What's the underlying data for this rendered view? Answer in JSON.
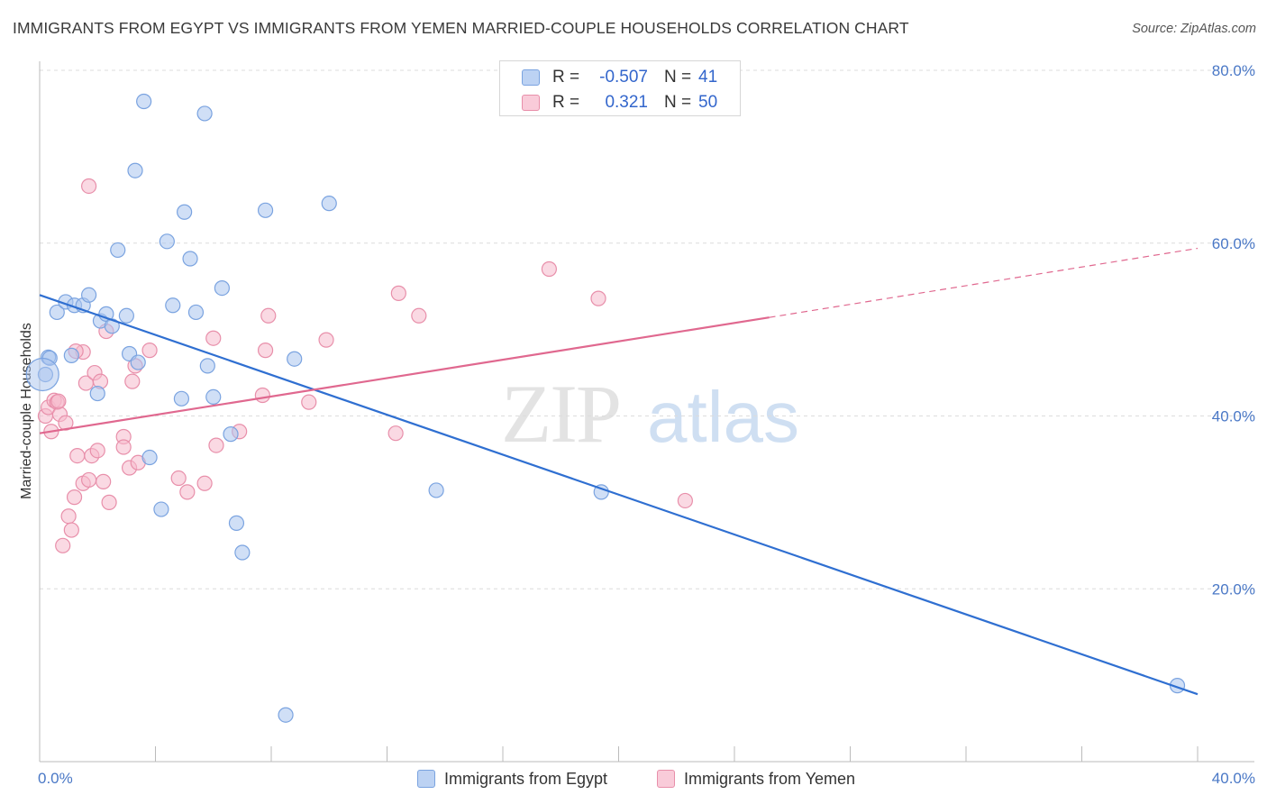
{
  "title": "IMMIGRANTS FROM EGYPT VS IMMIGRANTS FROM YEMEN MARRIED-COUPLE HOUSEHOLDS CORRELATION CHART",
  "source": "Source: ZipAtlas.com",
  "watermark": {
    "zip": "ZIP",
    "atlas": "atlas"
  },
  "colors": {
    "egypt_fill": "#a9c4ee",
    "egypt_stroke": "#7aa3e0",
    "egypt_line": "#2f6fd1",
    "yemen_fill": "#f6b9cc",
    "yemen_stroke": "#e88faa",
    "yemen_line": "#e0688f",
    "grid": "#dcdcdc",
    "tick_text": "#4a78c6"
  },
  "legend": {
    "rows": [
      {
        "r_label": "R =",
        "r_value": "-0.507",
        "n_label": "N =",
        "n_value": "41"
      },
      {
        "r_label": "R =",
        "r_value": "0.321",
        "n_label": "N =",
        "n_value": "50"
      }
    ]
  },
  "bottom_legend": {
    "egypt": "Immigrants from Egypt",
    "yemen": "Immigrants from Yemen"
  },
  "chart_data": {
    "type": "scatter",
    "title": "IMMIGRANTS FROM EGYPT VS IMMIGRANTS FROM YEMEN MARRIED-COUPLE HOUSEHOLDS CORRELATION CHART",
    "xlabel": "",
    "ylabel": "Married-couple Households",
    "xlim": [
      0,
      40
    ],
    "ylim": [
      0,
      80
    ],
    "x_tick_labels": [
      "0.0%",
      "40.0%"
    ],
    "y_ticks": [
      20,
      40,
      60,
      80
    ],
    "y_tick_labels": [
      "20.0%",
      "40.0%",
      "60.0%",
      "80.0%"
    ],
    "grid": true,
    "legend_position": "top-center",
    "series": [
      {
        "name": "Immigrants from Egypt",
        "r": -0.507,
        "n": 41,
        "points": [
          [
            0.2,
            44.8
          ],
          [
            0.3,
            46.8
          ],
          [
            0.6,
            52.0
          ],
          [
            0.9,
            53.2
          ],
          [
            1.1,
            47.0
          ],
          [
            1.2,
            52.8
          ],
          [
            1.5,
            52.8
          ],
          [
            1.7,
            54.0
          ],
          [
            2.0,
            42.6
          ],
          [
            2.1,
            51.0
          ],
          [
            2.3,
            51.8
          ],
          [
            2.5,
            50.4
          ],
          [
            2.7,
            59.2
          ],
          [
            3.0,
            51.6
          ],
          [
            3.1,
            47.2
          ],
          [
            3.3,
            68.4
          ],
          [
            3.4,
            46.2
          ],
          [
            3.6,
            76.4
          ],
          [
            3.8,
            35.2
          ],
          [
            4.2,
            29.2
          ],
          [
            4.4,
            60.2
          ],
          [
            4.6,
            52.8
          ],
          [
            4.9,
            42.0
          ],
          [
            5.0,
            63.6
          ],
          [
            5.2,
            58.2
          ],
          [
            5.4,
            52.0
          ],
          [
            5.7,
            75.0
          ],
          [
            5.8,
            45.8
          ],
          [
            6.0,
            42.2
          ],
          [
            6.3,
            54.8
          ],
          [
            6.6,
            37.9
          ],
          [
            6.8,
            27.6
          ],
          [
            7.0,
            24.2
          ],
          [
            7.8,
            63.8
          ],
          [
            8.5,
            5.4
          ],
          [
            8.8,
            46.6
          ],
          [
            10.0,
            64.6
          ],
          [
            13.7,
            31.4
          ],
          [
            19.4,
            31.2
          ],
          [
            39.3,
            8.8
          ],
          [
            0.35,
            46.7
          ]
        ]
      },
      {
        "name": "Immigrants from Yemen",
        "r": 0.321,
        "n": 50,
        "points": [
          [
            0.2,
            40.0
          ],
          [
            0.3,
            41.0
          ],
          [
            0.4,
            38.2
          ],
          [
            0.5,
            41.8
          ],
          [
            0.6,
            41.6
          ],
          [
            0.7,
            40.2
          ],
          [
            0.8,
            25.0
          ],
          [
            0.9,
            39.2
          ],
          [
            1.0,
            28.4
          ],
          [
            1.1,
            26.8
          ],
          [
            1.2,
            30.6
          ],
          [
            1.3,
            35.4
          ],
          [
            1.5,
            47.4
          ],
          [
            1.5,
            32.2
          ],
          [
            1.6,
            43.8
          ],
          [
            1.7,
            32.6
          ],
          [
            1.7,
            66.6
          ],
          [
            1.8,
            35.4
          ],
          [
            1.9,
            45.0
          ],
          [
            2.0,
            36.0
          ],
          [
            2.1,
            44.0
          ],
          [
            2.2,
            32.4
          ],
          [
            2.3,
            49.8
          ],
          [
            2.4,
            30.0
          ],
          [
            2.9,
            37.6
          ],
          [
            2.9,
            36.4
          ],
          [
            3.1,
            34.0
          ],
          [
            3.2,
            44.0
          ],
          [
            3.3,
            45.8
          ],
          [
            3.4,
            34.6
          ],
          [
            3.8,
            47.6
          ],
          [
            4.8,
            32.8
          ],
          [
            5.1,
            31.2
          ],
          [
            5.7,
            32.2
          ],
          [
            6.0,
            49.0
          ],
          [
            6.1,
            36.6
          ],
          [
            6.9,
            38.2
          ],
          [
            7.7,
            42.4
          ],
          [
            7.8,
            47.6
          ],
          [
            7.9,
            51.6
          ],
          [
            9.3,
            41.6
          ],
          [
            9.9,
            48.8
          ],
          [
            12.3,
            38.0
          ],
          [
            12.4,
            54.2
          ],
          [
            13.1,
            51.6
          ],
          [
            17.6,
            57.0
          ],
          [
            19.3,
            53.6
          ],
          [
            22.3,
            30.2
          ],
          [
            1.25,
            47.5
          ],
          [
            0.65,
            41.7
          ]
        ]
      }
    ],
    "trend_lines": [
      {
        "series": "Immigrants from Egypt",
        "x": [
          0,
          40
        ],
        "y": [
          54.0,
          7.8
        ],
        "style": "solid"
      },
      {
        "series": "Immigrants from Yemen",
        "x": [
          0,
          25.2
        ],
        "y": [
          38.0,
          51.4
        ],
        "style": "solid"
      },
      {
        "series": "Immigrants from Yemen",
        "x": [
          25.2,
          40
        ],
        "y": [
          51.4,
          59.4
        ],
        "style": "dashed"
      }
    ]
  }
}
